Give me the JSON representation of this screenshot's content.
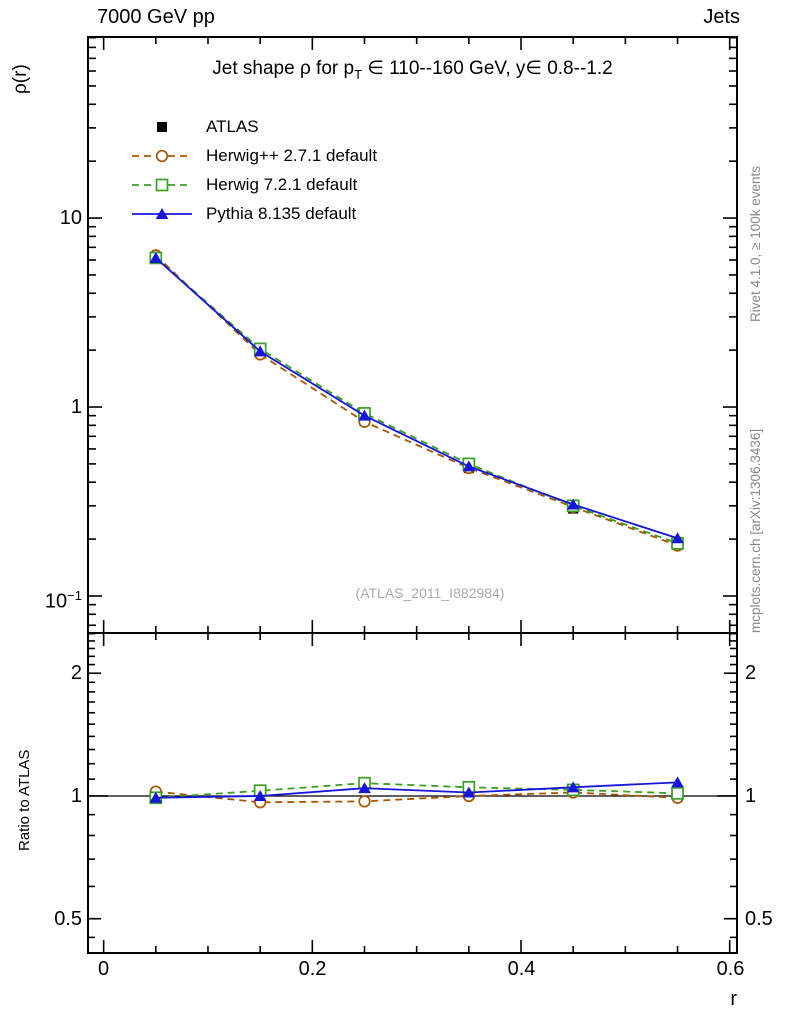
{
  "header": {
    "left": "7000 GeV pp",
    "right": "Jets"
  },
  "side_notes": {
    "rivet": "Rivet 4.1.0, ≥ 100k events",
    "mcplots": "mcplots.cern.ch [arXiv:1306.3436]"
  },
  "watermark": "(ATLAS_2011_I882984)",
  "chart_data": {
    "type": "line",
    "title": "Jet shape ρ for p_T ∈ 110--160 GeV, y∈ 0.8--1.2",
    "title_prefix": "Jet shape ρ for p",
    "title_sub": "T",
    "title_suffix": " ∈ 110--160 GeV, y∈ 0.8--1.2",
    "xlabel": "r",
    "ylabel": "ρ(r)",
    "ratio_ylabel": "Ratio to ATLAS",
    "xlim": [
      -0.015,
      0.607
    ],
    "main_ylim": [
      0.0637,
      90.8
    ],
    "ratio_ylim": [
      0.412,
      2.51
    ],
    "x": [
      0.05,
      0.15,
      0.25,
      0.35,
      0.45,
      0.55
    ],
    "x_major_ticks": [
      0,
      0.2,
      0.4,
      0.6
    ],
    "x_major_labels": [
      "0",
      "0.2",
      "0.4",
      "0.6"
    ],
    "x_minor_step": 0.05,
    "main_yticks": [
      {
        "v": 10,
        "base": "10",
        "sup": ""
      },
      {
        "v": 1,
        "base": "1",
        "sup": ""
      },
      {
        "v": 0.1,
        "base": "10",
        "sup": "−1"
      }
    ],
    "ratio_yticks": [
      {
        "v": 2,
        "base": "2"
      },
      {
        "v": 1,
        "base": "1"
      },
      {
        "v": 0.5,
        "base": "0.5"
      }
    ],
    "ratio_minor_ticks": [
      0.45,
      0.5,
      0.6,
      0.7,
      0.8,
      0.9,
      1.1,
      1.2,
      1.3,
      1.4,
      1.5,
      1.6,
      1.7,
      1.8,
      1.9,
      2.1,
      2.2,
      2.3,
      2.4,
      2.5
    ],
    "legend_position": "top-left",
    "grid": false,
    "series": [
      {
        "name": "ATLAS",
        "color": "#000000",
        "marker": "square-filled",
        "line": "none",
        "values": [
          6.2,
          1.97,
          0.86,
          0.475,
          0.29,
          0.187
        ],
        "ratio": [
          1,
          1,
          1,
          1,
          1,
          1
        ]
      },
      {
        "name": "Herwig++ 2.7.1 default",
        "color": "#aa5500",
        "marker": "circle-open",
        "line": "dashed",
        "values": [
          6.35,
          1.9,
          0.835,
          0.476,
          0.296,
          0.185
        ],
        "ratio": [
          1.025,
          0.965,
          0.97,
          1.0,
          1.02,
          0.99
        ]
      },
      {
        "name": "Herwig 7.2.1 default",
        "color": "#36a023",
        "marker": "square-open",
        "line": "dashed",
        "values": [
          6.15,
          2.03,
          0.925,
          0.5,
          0.3,
          0.19
        ],
        "ratio": [
          0.99,
          1.03,
          1.075,
          1.05,
          1.035,
          1.015
        ]
      },
      {
        "name": "Pythia 8.135 default",
        "color": "#1616dd",
        "marker": "triangle-filled",
        "line": "solid",
        "values": [
          6.15,
          1.97,
          0.9,
          0.485,
          0.305,
          0.202
        ],
        "ratio": [
          0.99,
          1.0,
          1.045,
          1.02,
          1.05,
          1.08
        ]
      }
    ]
  }
}
